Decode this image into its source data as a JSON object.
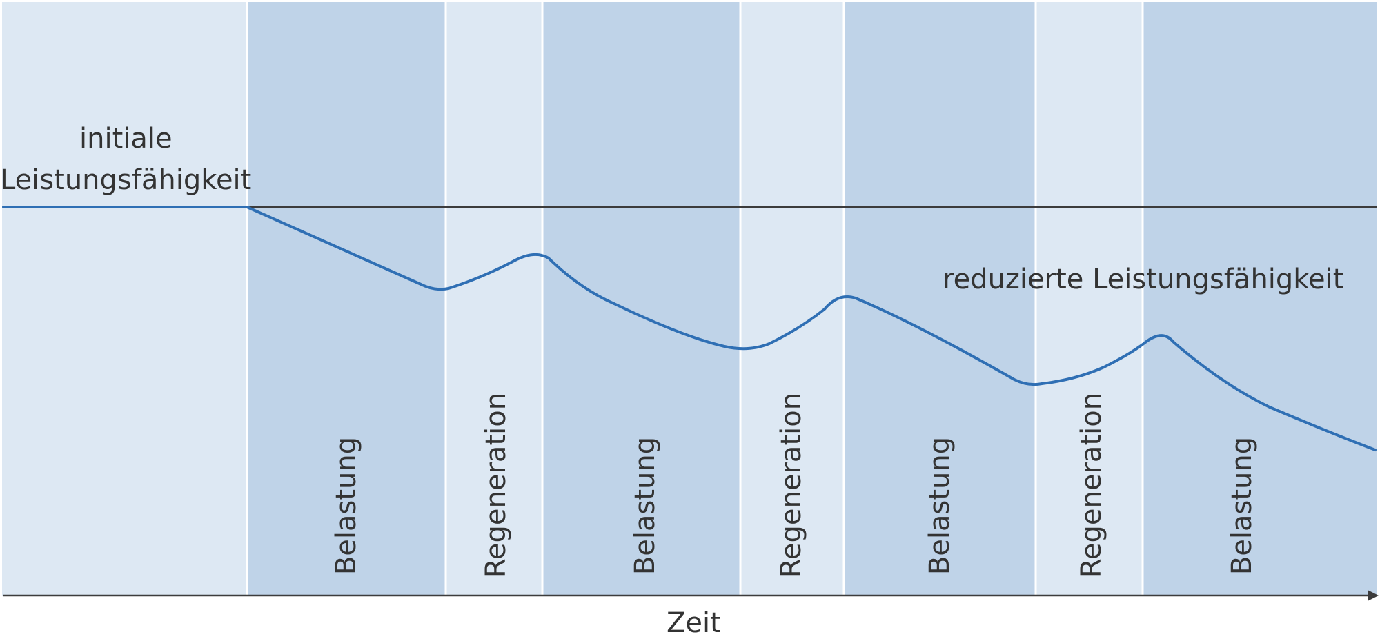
{
  "labels": {
    "initial_line1": "initiale",
    "initial_line2": "Leistungsfähigkeit",
    "reduced": "reduzierte Leistungsfähigkeit",
    "time_axis": "Zeit"
  },
  "phases": [
    "Belastung",
    "Regeneration",
    "Belastung",
    "Regeneration",
    "Belastung",
    "Regeneration",
    "Belastung"
  ],
  "colors": {
    "band_light": "#dde8f3",
    "band_dark": "#bfd3e8",
    "curve": "#2f6fb4",
    "axis": "#3c3c3c",
    "text": "#333333"
  }
}
